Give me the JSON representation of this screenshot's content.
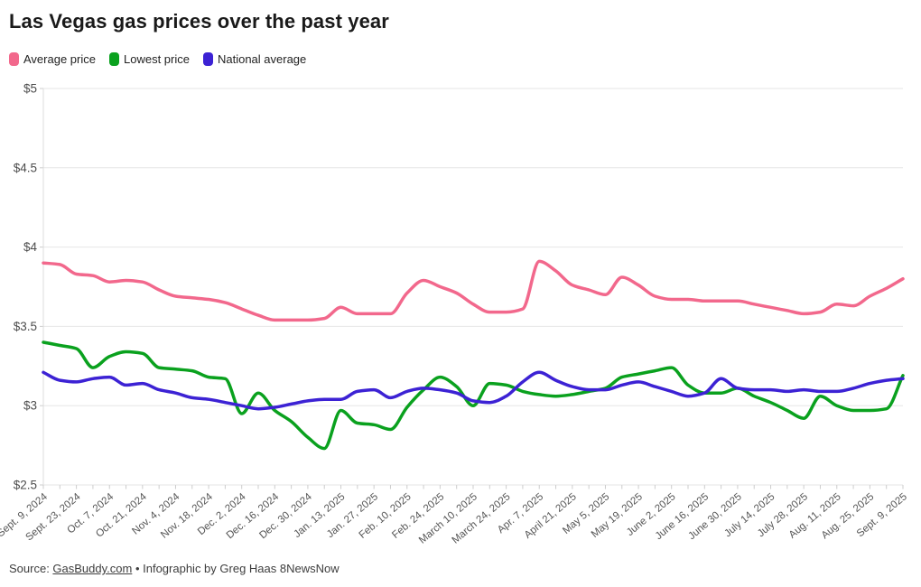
{
  "header": {
    "title": "Las Vegas gas prices over the past year"
  },
  "legend": {
    "items": [
      {
        "label": "Average price",
        "color": "#F2688C"
      },
      {
        "label": "Lowest price",
        "color": "#0AA11E"
      },
      {
        "label": "National average",
        "color": "#3C22D4"
      }
    ]
  },
  "footer": {
    "source_prefix": "Source: ",
    "source_link": "GasBuddy.com",
    "source_separator": " • ",
    "credit": "Infographic by Greg Haas 8NewsNow"
  },
  "chart_data": {
    "type": "line",
    "title": "Las Vegas gas prices over the past year",
    "xlabel": "",
    "ylabel": "",
    "ylim": [
      2.5,
      5
    ],
    "grid": true,
    "legend_position": "top",
    "y_ticks": [
      {
        "label": "$5",
        "value": 5
      },
      {
        "label": "$4.5",
        "value": 4.5
      },
      {
        "label": "$4",
        "value": 4
      },
      {
        "label": "$3.5",
        "value": 3.5
      },
      {
        "label": "$3",
        "value": 3
      },
      {
        "label": "$2.5",
        "value": 2.5
      }
    ],
    "x": [
      "2024-09-09",
      "2024-09-16",
      "2024-09-23",
      "2024-09-30",
      "2024-10-07",
      "2024-10-14",
      "2024-10-21",
      "2024-10-28",
      "2024-11-04",
      "2024-11-11",
      "2024-11-18",
      "2024-11-25",
      "2024-12-02",
      "2024-12-09",
      "2024-12-16",
      "2024-12-23",
      "2024-12-30",
      "2025-01-06",
      "2025-01-13",
      "2025-01-20",
      "2025-01-27",
      "2025-02-03",
      "2025-02-10",
      "2025-02-17",
      "2025-02-24",
      "2025-03-03",
      "2025-03-10",
      "2025-03-17",
      "2025-03-24",
      "2025-03-31",
      "2025-04-07",
      "2025-04-14",
      "2025-04-21",
      "2025-04-28",
      "2025-05-05",
      "2025-05-12",
      "2025-05-19",
      "2025-05-26",
      "2025-06-02",
      "2025-06-09",
      "2025-06-16",
      "2025-06-23",
      "2025-06-30",
      "2025-07-07",
      "2025-07-14",
      "2025-07-21",
      "2025-07-28",
      "2025-08-04",
      "2025-08-11",
      "2025-08-18",
      "2025-08-25",
      "2025-09-01",
      "2025-09-09"
    ],
    "x_tick_labels": [
      "Sept. 9, 2024",
      "Sept. 23, 2024",
      "Oct. 7, 2024",
      "Oct. 21, 2024",
      "Nov. 4, 2024",
      "Nov. 18, 2024",
      "Dec. 2, 2024",
      "Dec. 16, 2024",
      "Dec. 30, 2024",
      "Jan. 13, 2025",
      "Jan. 27, 2025",
      "Feb. 10, 2025",
      "Feb. 24, 2025",
      "March 10, 2025",
      "March 24, 2025",
      "Apr. 7, 2025",
      "April 21, 2025",
      "May 5, 2025",
      "May 19, 2025",
      "June 2, 2025",
      "June 16, 2025",
      "June 30, 2025",
      "July 14, 2025",
      "July 28, 2025",
      "Aug. 11, 2025",
      "Aug. 25, 2025",
      "Sept. 9, 2025"
    ],
    "series": [
      {
        "name": "Average price",
        "color": "#F2688C",
        "values": [
          3.9,
          3.89,
          3.83,
          3.82,
          3.78,
          3.79,
          3.78,
          3.73,
          3.69,
          3.68,
          3.67,
          3.65,
          3.61,
          3.57,
          3.54,
          3.54,
          3.54,
          3.55,
          3.62,
          3.58,
          3.58,
          3.58,
          3.71,
          3.79,
          3.75,
          3.71,
          3.64,
          3.59,
          3.59,
          3.61,
          3.91,
          3.85,
          3.76,
          3.73,
          3.7,
          3.81,
          3.76,
          3.69,
          3.67,
          3.67,
          3.66,
          3.66,
          3.66,
          3.64,
          3.62,
          3.6,
          3.58,
          3.59,
          3.64,
          3.63,
          3.69,
          3.74,
          3.8
        ]
      },
      {
        "name": "Lowest price",
        "color": "#0AA11E",
        "values": [
          3.4,
          3.38,
          3.36,
          3.24,
          3.31,
          3.34,
          3.33,
          3.24,
          3.23,
          3.22,
          3.18,
          3.17,
          2.95,
          3.08,
          2.97,
          2.9,
          2.8,
          2.73,
          2.97,
          2.89,
          2.88,
          2.85,
          2.99,
          3.1,
          3.18,
          3.12,
          3.0,
          3.14,
          3.13,
          3.09,
          3.07,
          3.06,
          3.07,
          3.09,
          3.11,
          3.18,
          3.2,
          3.22,
          3.24,
          3.13,
          3.08,
          3.08,
          3.11,
          3.06,
          3.02,
          2.97,
          2.92,
          3.06,
          3.0,
          2.97,
          2.97,
          2.98,
          3.19
        ]
      },
      {
        "name": "National average",
        "color": "#3C22D4",
        "values": [
          3.21,
          3.16,
          3.15,
          3.17,
          3.18,
          3.13,
          3.14,
          3.1,
          3.08,
          3.05,
          3.04,
          3.02,
          3.0,
          2.98,
          2.99,
          3.01,
          3.03,
          3.04,
          3.04,
          3.09,
          3.1,
          3.05,
          3.09,
          3.11,
          3.1,
          3.08,
          3.03,
          3.02,
          3.06,
          3.15,
          3.21,
          3.16,
          3.12,
          3.1,
          3.1,
          3.13,
          3.15,
          3.12,
          3.09,
          3.06,
          3.08,
          3.17,
          3.11,
          3.1,
          3.1,
          3.09,
          3.1,
          3.09,
          3.09,
          3.11,
          3.14,
          3.16,
          3.17
        ]
      }
    ]
  }
}
